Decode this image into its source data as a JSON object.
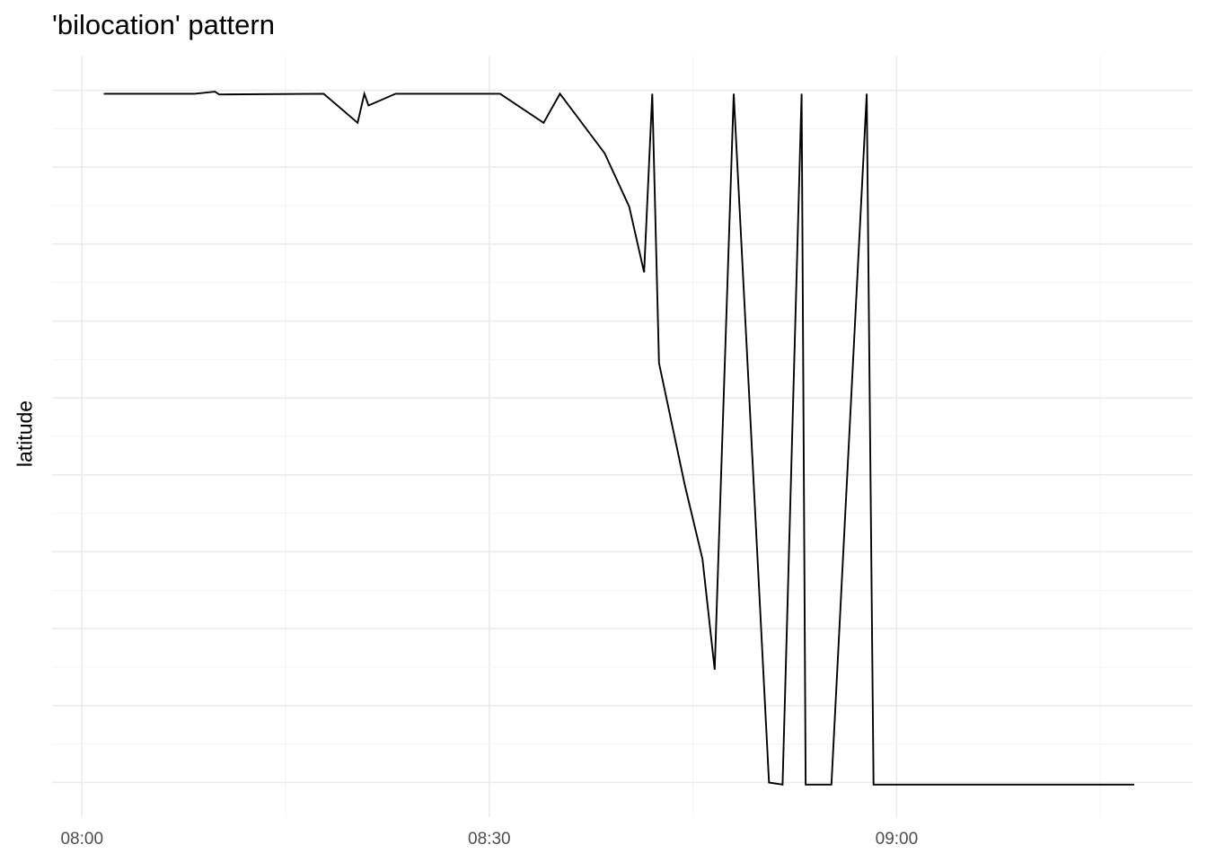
{
  "chart_data": {
    "type": "line",
    "title": "'bilocation' pattern",
    "xlabel": "",
    "ylabel": "latitude",
    "x_tick_labels": [
      "08:00",
      "08:30",
      "09:00"
    ],
    "x_ticks_minutes": [
      0,
      30,
      60
    ],
    "xlim_minutes": [
      -2.2,
      81.8
    ],
    "ylim": [
      -0.05,
      1.05
    ],
    "y_gridlines": 10,
    "y_tick_labels_shown": false,
    "grid": true,
    "legend": "none",
    "line_color": "#000000",
    "series": [
      {
        "points": [
          [
            1.6,
            0.995
          ],
          [
            8.3,
            0.995
          ],
          [
            9.8,
            0.998
          ],
          [
            10.1,
            0.994
          ],
          [
            17.8,
            0.995
          ],
          [
            20.3,
            0.953
          ],
          [
            20.8,
            0.995
          ],
          [
            21.1,
            0.978
          ],
          [
            23.1,
            0.995
          ],
          [
            30.8,
            0.995
          ],
          [
            34.0,
            0.953
          ],
          [
            35.2,
            0.995
          ],
          [
            38.5,
            0.909
          ],
          [
            40.3,
            0.832
          ],
          [
            41.4,
            0.737
          ],
          [
            42.0,
            0.995
          ],
          [
            42.5,
            0.606
          ],
          [
            44.4,
            0.43
          ],
          [
            45.7,
            0.323
          ],
          [
            46.6,
            0.163
          ],
          [
            48.0,
            0.995
          ],
          [
            50.6,
            0.0
          ],
          [
            51.6,
            -0.003
          ],
          [
            53.0,
            0.995
          ],
          [
            53.3,
            -0.003
          ],
          [
            55.2,
            -0.003
          ],
          [
            57.8,
            0.995
          ],
          [
            58.3,
            -0.003
          ],
          [
            77.5,
            -0.003
          ]
        ]
      }
    ]
  }
}
